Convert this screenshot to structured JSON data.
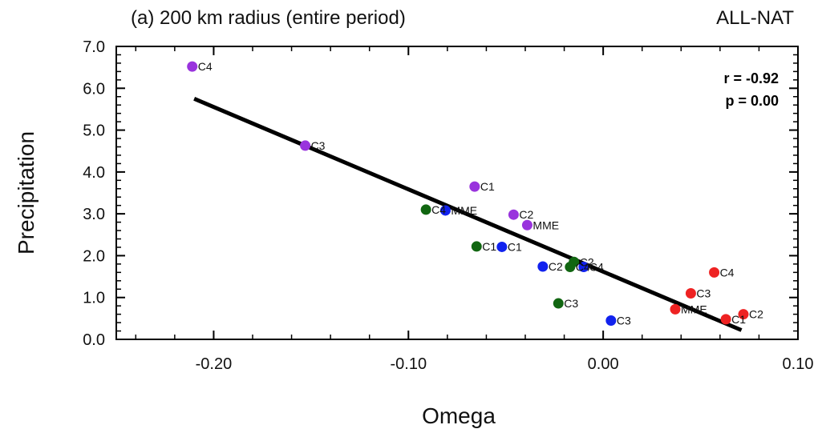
{
  "chart_data": {
    "type": "scatter",
    "title_left": "(a) 200 km radius (entire period)",
    "title_right": "ALL-NAT",
    "xlabel": "Omega",
    "ylabel": "Precipitation",
    "xlim": [
      -0.25,
      0.1
    ],
    "ylim": [
      0,
      7
    ],
    "xticks": [
      -0.2,
      -0.1,
      0.0,
      0.1
    ],
    "xtick_labels": [
      "-0.20",
      "-0.10",
      "0.00",
      "0.10"
    ],
    "yticks": [
      0,
      1,
      2,
      3,
      4,
      5,
      6,
      7
    ],
    "ytick_labels": [
      "0.0",
      "1.0",
      "2.0",
      "3.0",
      "4.0",
      "5.0",
      "6.0",
      "7.0"
    ],
    "grid": false,
    "stats": {
      "r": "r = -0.92",
      "p": "p = 0.00"
    },
    "regression": {
      "x": [
        -0.21,
        0.071
      ],
      "y": [
        5.75,
        0.22
      ],
      "color": "#000000"
    },
    "series": [
      {
        "color": "#9933dd",
        "points": [
          {
            "label": "C4",
            "x": -0.211,
            "y": 6.52
          },
          {
            "label": "C3",
            "x": -0.153,
            "y": 4.63
          },
          {
            "label": "C1",
            "x": -0.066,
            "y": 3.65
          },
          {
            "label": "C2",
            "x": -0.046,
            "y": 2.98
          },
          {
            "label": "MME",
            "x": -0.039,
            "y": 2.73
          }
        ]
      },
      {
        "color": "#116611",
        "points": [
          {
            "label": "C4",
            "x": -0.091,
            "y": 3.1
          },
          {
            "label": "C1",
            "x": -0.065,
            "y": 2.22
          },
          {
            "label": "C2",
            "x": -0.015,
            "y": 1.85
          },
          {
            "label": "C4",
            "x": -0.017,
            "y": 1.73
          },
          {
            "label": "C3",
            "x": -0.023,
            "y": 0.86
          }
        ]
      },
      {
        "color": "#1122ee",
        "points": [
          {
            "label": "MME",
            "x": -0.081,
            "y": 3.08
          },
          {
            "label": "C1",
            "x": -0.052,
            "y": 2.21
          },
          {
            "label": "C2",
            "x": -0.031,
            "y": 1.74
          },
          {
            "label": "C4",
            "x": -0.01,
            "y": 1.73
          },
          {
            "label": "C3",
            "x": 0.004,
            "y": 0.45
          }
        ]
      },
      {
        "color": "#ee2222",
        "points": [
          {
            "label": "C4",
            "x": 0.057,
            "y": 1.6
          },
          {
            "label": "C3",
            "x": 0.045,
            "y": 1.1
          },
          {
            "label": "MME",
            "x": 0.037,
            "y": 0.72
          },
          {
            "label": "C2",
            "x": 0.072,
            "y": 0.6
          },
          {
            "label": "C1",
            "x": 0.063,
            "y": 0.48
          }
        ]
      }
    ]
  }
}
